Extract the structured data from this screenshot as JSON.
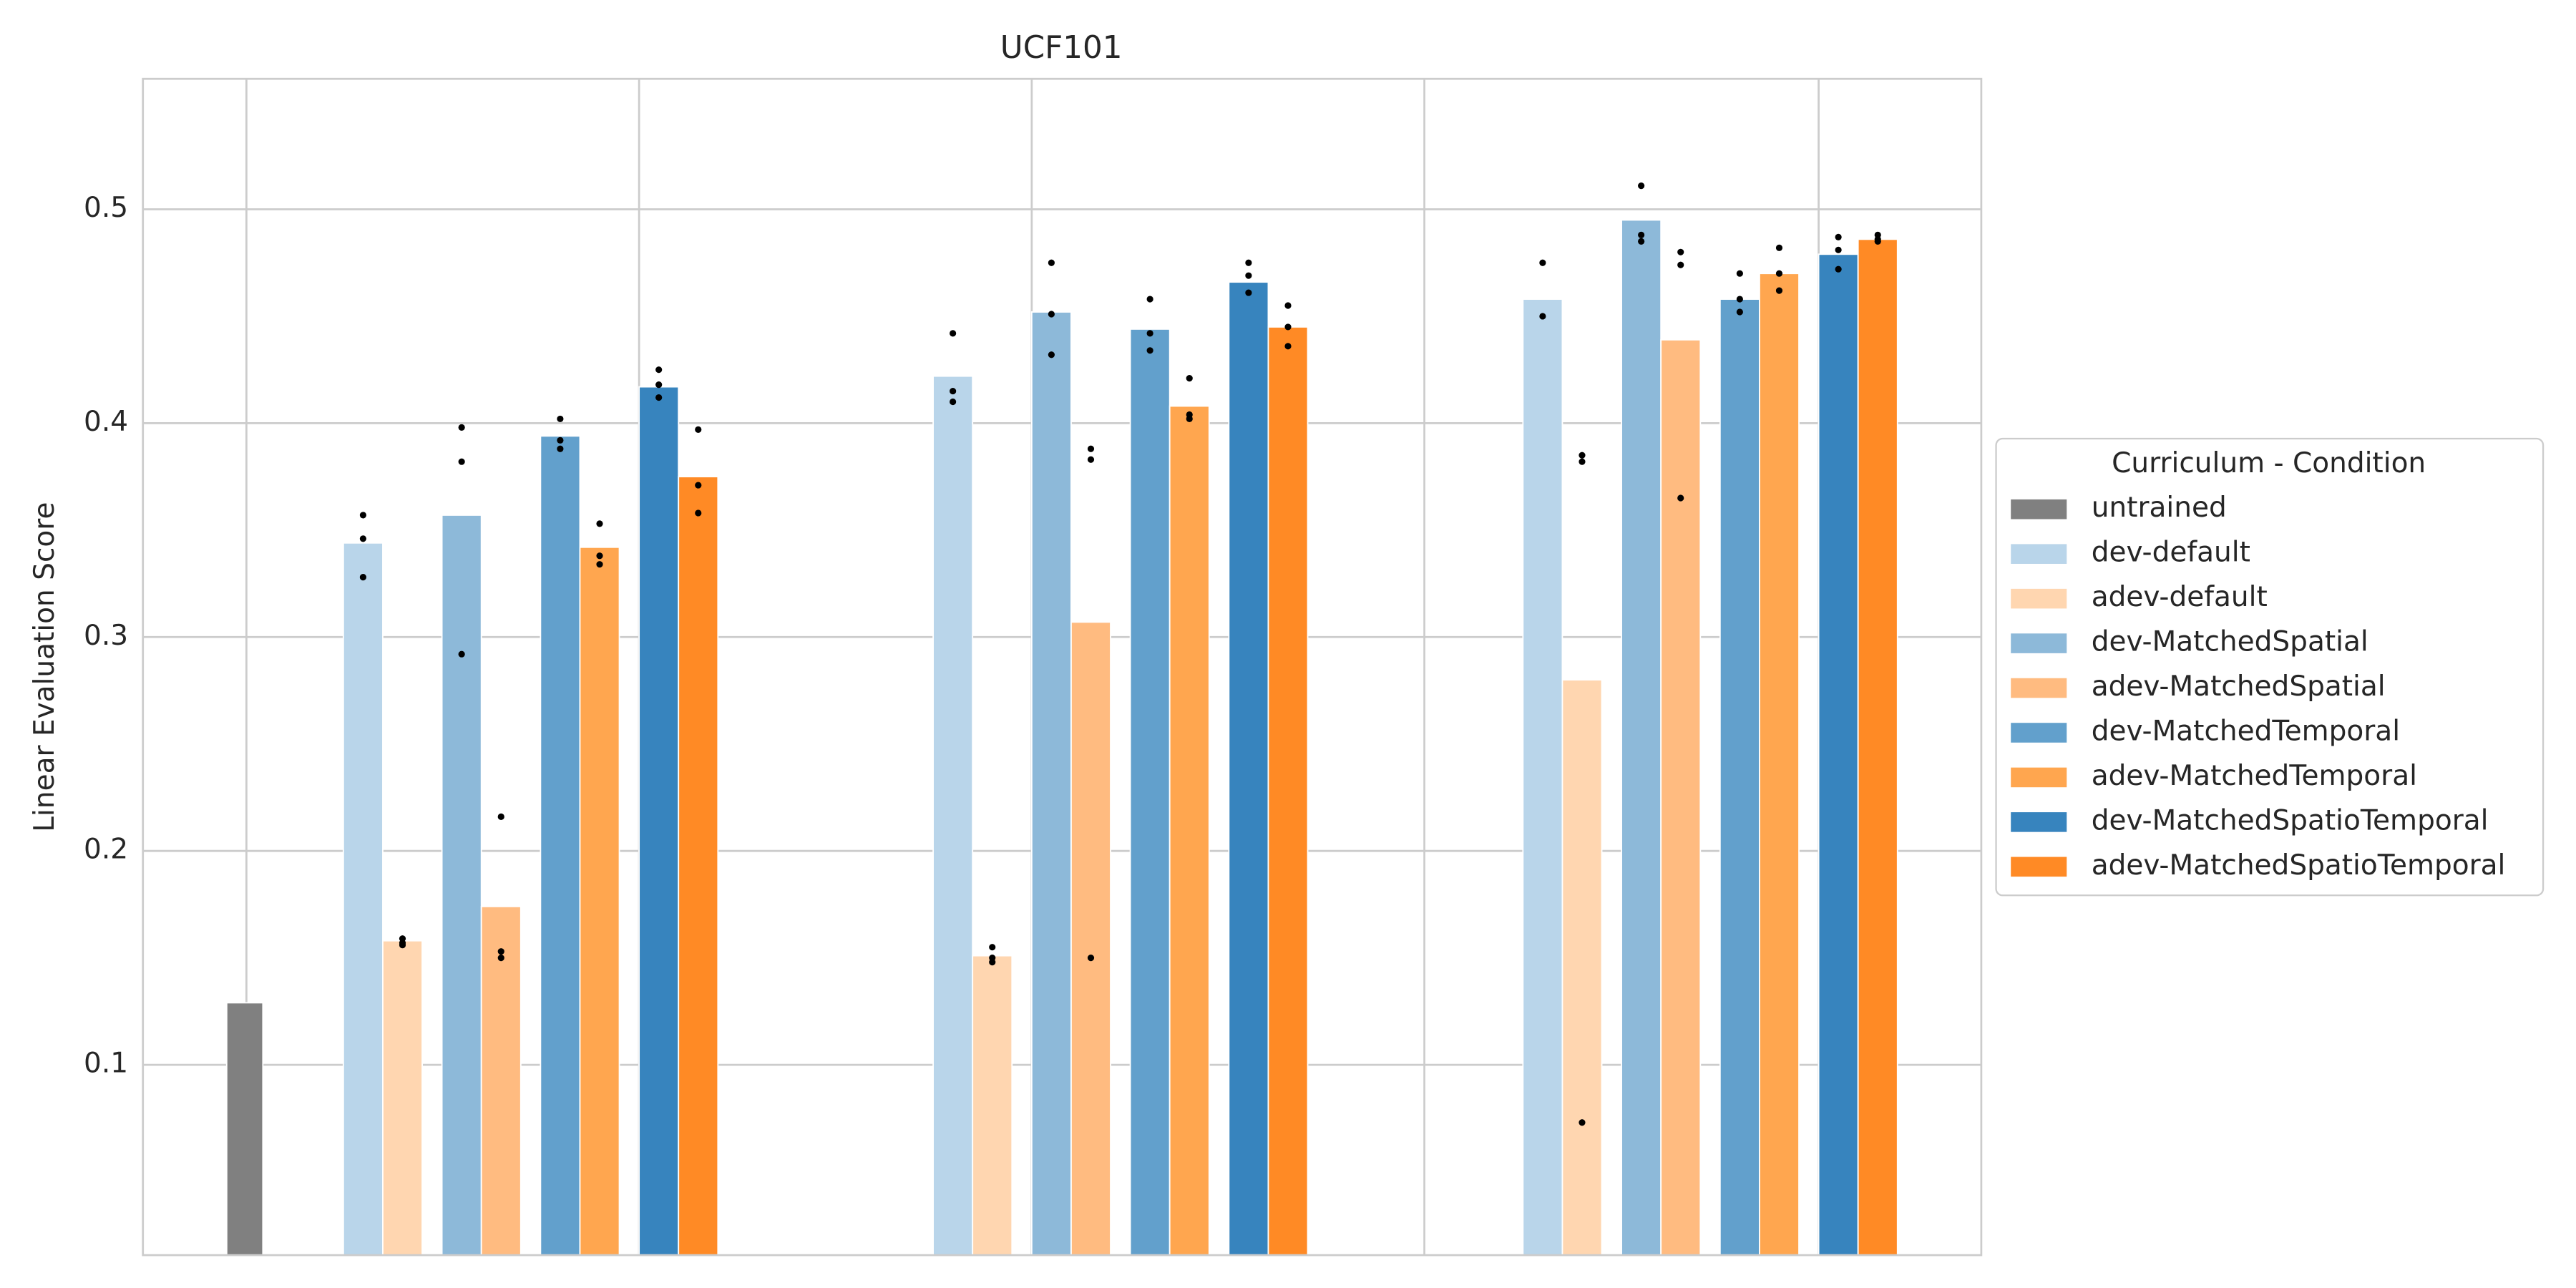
{
  "chart_data": {
    "type": "bar",
    "title": "UCF101",
    "ylabel": "Linear Evaluation Score",
    "categories": [
      null,
      null,
      null,
      null
    ],
    "ylim": [
      0.011,
      0.561
    ],
    "yticks": [
      0.1,
      0.2,
      0.3,
      0.4,
      0.5
    ],
    "grid": true,
    "legend": {
      "title": "Curriculum - Condition",
      "position": "right"
    },
    "series": [
      {
        "name": "untrained",
        "color": "#808080",
        "values": [
          0.129,
          null,
          null,
          null
        ],
        "points": [
          null,
          null,
          null,
          null
        ]
      },
      {
        "name": "dev-default",
        "color": "#b9d5ea",
        "values": [
          null,
          0.344,
          0.422,
          0.458
        ],
        "points": [
          null,
          [
            0.357,
            0.346,
            0.328
          ],
          [
            0.442,
            0.415,
            0.41
          ],
          [
            0.475,
            0.45
          ]
        ]
      },
      {
        "name": "adev-default",
        "color": "#ffd6b0",
        "values": [
          null,
          0.158,
          0.151,
          0.28
        ],
        "points": [
          null,
          [
            0.159,
            0.157,
            0.156
          ],
          [
            0.155,
            0.15,
            0.148
          ],
          [
            0.385,
            0.382,
            0.073
          ]
        ]
      },
      {
        "name": "dev-MatchedSpatial",
        "color": "#8db9d9",
        "values": [
          null,
          0.357,
          0.452,
          0.495
        ],
        "points": [
          null,
          [
            0.398,
            0.382,
            0.292
          ],
          [
            0.475,
            0.451,
            0.432
          ],
          [
            0.511,
            0.488,
            0.485
          ]
        ]
      },
      {
        "name": "adev-MatchedSpatial",
        "color": "#ffbb80",
        "values": [
          null,
          0.174,
          0.307,
          0.439
        ],
        "points": [
          null,
          [
            0.216,
            0.153,
            0.15
          ],
          [
            0.388,
            0.383,
            0.15
          ],
          [
            0.48,
            0.474,
            0.365
          ]
        ]
      },
      {
        "name": "dev-MatchedTemporal",
        "color": "#62a0cc",
        "values": [
          null,
          0.394,
          0.444,
          0.458
        ],
        "points": [
          null,
          [
            0.402,
            0.392,
            0.388
          ],
          [
            0.458,
            0.442,
            0.434
          ],
          [
            0.47,
            0.458,
            0.452
          ]
        ]
      },
      {
        "name": "adev-MatchedTemporal",
        "color": "#ffa64f",
        "values": [
          null,
          0.342,
          0.408,
          0.47
        ],
        "points": [
          null,
          [
            0.353,
            0.338,
            0.334
          ],
          [
            0.421,
            0.404,
            0.402
          ],
          [
            0.482,
            0.47,
            0.462
          ]
        ]
      },
      {
        "name": "dev-MatchedSpatioTemporal",
        "color": "#3784be",
        "values": [
          null,
          0.417,
          0.466,
          0.479
        ],
        "points": [
          null,
          [
            0.425,
            0.418,
            0.412
          ],
          [
            0.475,
            0.469,
            0.461
          ],
          [
            0.487,
            0.481,
            0.472
          ]
        ]
      },
      {
        "name": "adev-MatchedSpatioTemporal",
        "color": "#ff8a25",
        "values": [
          null,
          0.375,
          0.445,
          0.486
        ],
        "points": [
          null,
          [
            0.397,
            0.371,
            0.358
          ],
          [
            0.455,
            0.445,
            0.436
          ],
          [
            0.488,
            0.486,
            0.485
          ]
        ]
      }
    ]
  }
}
